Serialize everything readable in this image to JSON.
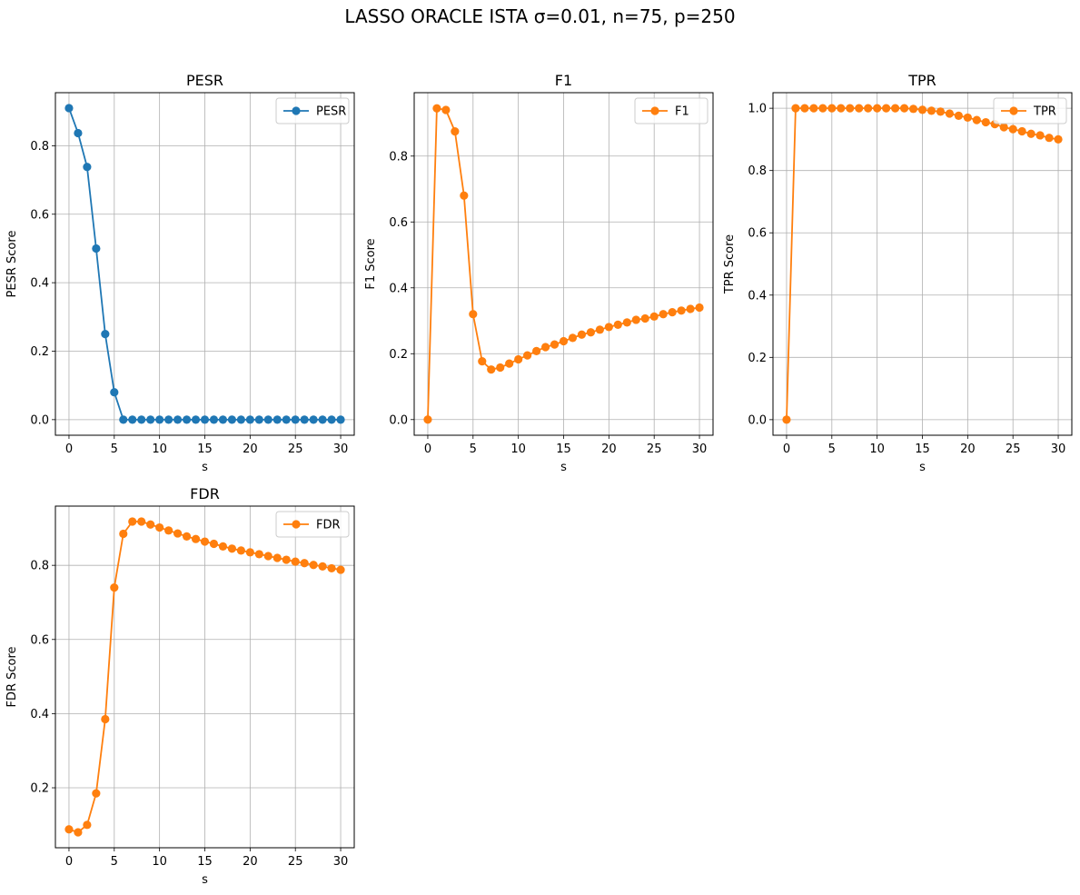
{
  "figure": {
    "suptitle": "LASSO ORACLE ISTA σ=0.01, n=75, p=250"
  },
  "chart_data": [
    {
      "type": "line",
      "title": "PESR",
      "xlabel": "s",
      "ylabel": "PESR Score",
      "xlim": [
        -1.5,
        31.5
      ],
      "ylim": [
        -0.0455,
        0.955
      ],
      "xticks": [
        0,
        5,
        10,
        15,
        20,
        25,
        30
      ],
      "yticks": [
        0.0,
        0.2,
        0.4,
        0.6,
        0.8
      ],
      "ytick_labels": [
        "0.0",
        "0.2",
        "0.4",
        "0.6",
        "0.8"
      ],
      "grid": true,
      "legend": "upper right",
      "series": [
        {
          "name": "PESR",
          "color": "#1f77b4",
          "marker": "circle",
          "x": [
            0,
            1,
            2,
            3,
            4,
            5,
            6,
            7,
            8,
            9,
            10,
            11,
            12,
            13,
            14,
            15,
            16,
            17,
            18,
            19,
            20,
            21,
            22,
            23,
            24,
            25,
            26,
            27,
            28,
            29,
            30
          ],
          "values": [
            0.91,
            0.837,
            0.738,
            0.5,
            0.25,
            0.08,
            0,
            0,
            0,
            0,
            0,
            0,
            0,
            0,
            0,
            0,
            0,
            0,
            0,
            0,
            0,
            0,
            0,
            0,
            0,
            0,
            0,
            0,
            0,
            0,
            0
          ]
        }
      ]
    },
    {
      "type": "line",
      "title": "F1",
      "xlabel": "s",
      "ylabel": "F1 Score",
      "xlim": [
        -1.5,
        31.5
      ],
      "ylim": [
        -0.0475,
        0.9925
      ],
      "xticks": [
        0,
        5,
        10,
        15,
        20,
        25,
        30
      ],
      "yticks": [
        0.0,
        0.2,
        0.4,
        0.6,
        0.8
      ],
      "ytick_labels": [
        "0.0",
        "0.2",
        "0.4",
        "0.6",
        "0.8"
      ],
      "grid": true,
      "legend": "upper right",
      "series": [
        {
          "name": "F1",
          "color": "#ff7f0e",
          "marker": "circle",
          "x": [
            0,
            1,
            2,
            3,
            4,
            5,
            6,
            7,
            8,
            9,
            10,
            11,
            12,
            13,
            14,
            15,
            16,
            17,
            18,
            19,
            20,
            21,
            22,
            23,
            24,
            25,
            26,
            27,
            28,
            29,
            30
          ],
          "values": [
            0,
            0.945,
            0.94,
            0.875,
            0.68,
            0.32,
            0.177,
            0.152,
            0.158,
            0.17,
            0.183,
            0.195,
            0.208,
            0.22,
            0.228,
            0.238,
            0.248,
            0.258,
            0.265,
            0.273,
            0.281,
            0.288,
            0.295,
            0.303,
            0.307,
            0.313,
            0.32,
            0.326,
            0.331,
            0.336,
            0.34
          ]
        }
      ]
    },
    {
      "type": "line",
      "title": "TPR",
      "xlabel": "s",
      "ylabel": "TPR Score",
      "xlim": [
        -1.5,
        31.5
      ],
      "ylim": [
        -0.05,
        1.05
      ],
      "xticks": [
        0,
        5,
        10,
        15,
        20,
        25,
        30
      ],
      "yticks": [
        0.0,
        0.2,
        0.4,
        0.6,
        0.8,
        1.0
      ],
      "ytick_labels": [
        "0.0",
        "0.2",
        "0.4",
        "0.6",
        "0.8",
        "1.0"
      ],
      "grid": true,
      "legend": "upper right",
      "series": [
        {
          "name": "TPR",
          "color": "#ff7f0e",
          "marker": "circle",
          "x": [
            0,
            1,
            2,
            3,
            4,
            5,
            6,
            7,
            8,
            9,
            10,
            11,
            12,
            13,
            14,
            15,
            16,
            17,
            18,
            19,
            20,
            21,
            22,
            23,
            24,
            25,
            26,
            27,
            28,
            29,
            30
          ],
          "values": [
            0,
            1,
            1,
            1,
            1,
            1,
            1,
            1,
            1,
            1,
            1,
            1,
            1,
            1,
            0.998,
            0.995,
            0.992,
            0.989,
            0.983,
            0.976,
            0.97,
            0.962,
            0.955,
            0.949,
            0.939,
            0.933,
            0.926,
            0.918,
            0.913,
            0.905,
            0.9
          ]
        }
      ]
    },
    {
      "type": "line",
      "title": "FDR",
      "xlabel": "s",
      "ylabel": "FDR Score",
      "xlim": [
        -1.5,
        31.5
      ],
      "ylim": [
        0.0383,
        0.9597
      ],
      "xticks": [
        0,
        5,
        10,
        15,
        20,
        25,
        30
      ],
      "yticks": [
        0.2,
        0.4,
        0.6,
        0.8
      ],
      "ytick_labels": [
        "0.2",
        "0.4",
        "0.6",
        "0.8"
      ],
      "grid": true,
      "legend": "upper right",
      "series": [
        {
          "name": "FDR",
          "color": "#ff7f0e",
          "marker": "circle",
          "x": [
            0,
            1,
            2,
            3,
            4,
            5,
            6,
            7,
            8,
            9,
            10,
            11,
            12,
            13,
            14,
            15,
            16,
            17,
            18,
            19,
            20,
            21,
            22,
            23,
            24,
            25,
            26,
            27,
            28,
            29,
            30
          ],
          "values": [
            0.088,
            0.08,
            0.1,
            0.185,
            0.385,
            0.74,
            0.885,
            0.918,
            0.918,
            0.91,
            0.902,
            0.894,
            0.886,
            0.878,
            0.871,
            0.864,
            0.858,
            0.851,
            0.845,
            0.84,
            0.835,
            0.83,
            0.825,
            0.82,
            0.815,
            0.81,
            0.806,
            0.801,
            0.797,
            0.792,
            0.788
          ]
        }
      ]
    }
  ]
}
